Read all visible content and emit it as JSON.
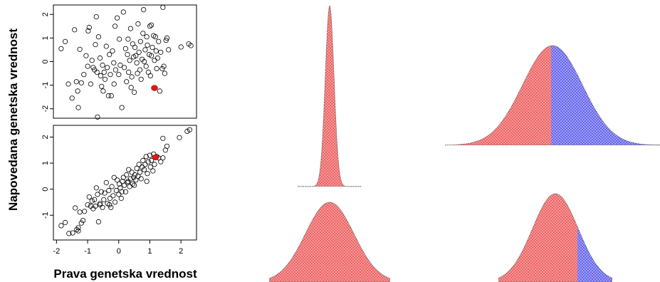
{
  "chart_data": [
    {
      "type": "scatter",
      "panel": "top-left",
      "ylabel": "Napovedana genetska vrednost",
      "xlim": [
        -2.1,
        2.5
      ],
      "ylim": [
        -2.4,
        2.4
      ],
      "yticks": [
        "-2",
        "-1",
        "0",
        "1",
        "2"
      ],
      "point_color": "#000000",
      "highlight_color": "#e01818",
      "highlight": {
        "x": 1.15,
        "y": -1.12
      },
      "points": [
        [
          -1.85,
          0.55
        ],
        [
          -1.72,
          0.85
        ],
        [
          -1.62,
          -0.95
        ],
        [
          -1.5,
          -1.55
        ],
        [
          -1.42,
          1.35
        ],
        [
          -1.36,
          -0.85
        ],
        [
          -1.32,
          -1.25
        ],
        [
          -1.3,
          -1.95
        ],
        [
          -1.25,
          0.52
        ],
        [
          -1.2,
          -0.9
        ],
        [
          -1.12,
          -0.55
        ],
        [
          -1.05,
          0.25
        ],
        [
          -0.98,
          1.3
        ],
        [
          -0.95,
          1.45
        ],
        [
          -0.9,
          -0.95
        ],
        [
          -0.86,
          0.05
        ],
        [
          -0.82,
          -0.25
        ],
        [
          -0.78,
          -0.35
        ],
        [
          -0.75,
          0.72
        ],
        [
          -0.72,
          1.9
        ],
        [
          -0.7,
          -0.45
        ],
        [
          -0.68,
          -2.35
        ],
        [
          -0.65,
          1.05
        ],
        [
          -0.6,
          0.15
        ],
        [
          -0.58,
          -0.6
        ],
        [
          -0.55,
          -1.05
        ],
        [
          -0.52,
          -0.15
        ],
        [
          -0.5,
          -1.25
        ],
        [
          -0.47,
          -0.45
        ],
        [
          -0.44,
          -0.75
        ],
        [
          -0.4,
          0.65
        ],
        [
          -0.37,
          -0.25
        ],
        [
          -0.33,
          -1.45
        ],
        [
          -0.3,
          0.3
        ],
        [
          -0.27,
          -0.55
        ],
        [
          -0.24,
          -1.45
        ],
        [
          -0.2,
          0.45
        ],
        [
          -0.16,
          -0.05
        ],
        [
          -0.12,
          1.5
        ],
        [
          -0.1,
          -0.35
        ],
        [
          -0.05,
          1.85
        ],
        [
          0.0,
          -0.55
        ],
        [
          0.02,
          0.95
        ],
        [
          0.05,
          -0.15
        ],
        [
          0.1,
          -1.95
        ],
        [
          0.15,
          2.1
        ],
        [
          0.18,
          -0.25
        ],
        [
          0.22,
          0.55
        ],
        [
          0.25,
          -0.85
        ],
        [
          0.28,
          0.3
        ],
        [
          0.32,
          -0.45
        ],
        [
          0.35,
          0.05
        ],
        [
          0.38,
          1.4
        ],
        [
          0.4,
          -1.1
        ],
        [
          0.42,
          -0.65
        ],
        [
          0.45,
          0.75
        ],
        [
          0.48,
          0.2
        ],
        [
          0.5,
          -1.3
        ],
        [
          0.52,
          0.6
        ],
        [
          0.55,
          0.25
        ],
        [
          0.58,
          -0.05
        ],
        [
          0.62,
          1.6
        ],
        [
          0.65,
          0.4
        ],
        [
          0.68,
          -0.35
        ],
        [
          0.7,
          0.85
        ],
        [
          0.72,
          -0.75
        ],
        [
          0.75,
          0.1
        ],
        [
          0.78,
          1.2
        ],
        [
          0.8,
          2.2
        ],
        [
          0.82,
          0.0
        ],
        [
          0.85,
          0.5
        ],
        [
          0.88,
          -0.2
        ],
        [
          0.9,
          1.05
        ],
        [
          0.92,
          0.7
        ],
        [
          0.95,
          -0.45
        ],
        [
          0.98,
          0.3
        ],
        [
          1.0,
          1.5
        ],
        [
          1.02,
          -0.6
        ],
        [
          1.05,
          0.25
        ],
        [
          1.08,
          0.6
        ],
        [
          1.12,
          1.1
        ],
        [
          1.15,
          0.05
        ],
        [
          1.18,
          1.05
        ],
        [
          1.2,
          0.45
        ],
        [
          1.22,
          -0.3
        ],
        [
          1.25,
          0.15
        ],
        [
          1.28,
          0.85
        ],
        [
          1.32,
          -1.25
        ],
        [
          1.35,
          0.4
        ],
        [
          1.42,
          2.3
        ],
        [
          1.45,
          -0.2
        ],
        [
          1.48,
          -0.5
        ],
        [
          1.52,
          0.9
        ],
        [
          1.55,
          1.0
        ],
        [
          1.6,
          0.5
        ],
        [
          1.05,
          1.55
        ],
        [
          0.6,
          -0.5
        ],
        [
          -0.15,
          -0.95
        ],
        [
          0.3,
          0.95
        ],
        [
          -1.0,
          -0.2
        ],
        [
          2.0,
          0.62
        ],
        [
          2.25,
          0.75
        ],
        [
          2.32,
          0.68
        ],
        [
          1.4,
          -0.3
        ]
      ]
    },
    {
      "type": "scatter",
      "panel": "bottom-left",
      "xlabel": "Prava genetska vrednost",
      "xlim": [
        -2.1,
        2.5
      ],
      "ylim": [
        -1.95,
        2.45
      ],
      "xticks": [
        "-2",
        "-1",
        "0",
        "1",
        "2"
      ],
      "yticks": [
        "-1",
        "0",
        "1",
        "2"
      ],
      "point_color": "#000000",
      "highlight_color": "#e01818",
      "highlight": {
        "x": 1.18,
        "y": 1.22
      },
      "points": [
        [
          -1.85,
          -1.4
        ],
        [
          -1.72,
          -1.28
        ],
        [
          -1.6,
          -1.7
        ],
        [
          -1.48,
          -1.68
        ],
        [
          -1.4,
          -0.72
        ],
        [
          -1.35,
          -1.55
        ],
        [
          -1.3,
          -1.48
        ],
        [
          -1.25,
          -0.88
        ],
        [
          -1.2,
          -1.3
        ],
        [
          -1.15,
          -1.2
        ],
        [
          -1.1,
          -0.85
        ],
        [
          -1.0,
          -0.6
        ],
        [
          -0.95,
          -0.3
        ],
        [
          -0.9,
          -0.65
        ],
        [
          -0.86,
          -0.45
        ],
        [
          -0.82,
          -0.75
        ],
        [
          -0.78,
          -0.4
        ],
        [
          -0.75,
          -0.65
        ],
        [
          -0.72,
          0.05
        ],
        [
          -0.68,
          -0.2
        ],
        [
          -0.65,
          -1.25
        ],
        [
          -0.6,
          -0.55
        ],
        [
          -0.56,
          -0.1
        ],
        [
          -0.52,
          -0.7
        ],
        [
          -0.48,
          -0.4
        ],
        [
          -0.45,
          -0.15
        ],
        [
          -0.4,
          0.25
        ],
        [
          -0.36,
          -0.55
        ],
        [
          -0.32,
          -0.05
        ],
        [
          -0.28,
          -0.35
        ],
        [
          -0.25,
          -0.7
        ],
        [
          -0.22,
          0.1
        ],
        [
          -0.18,
          -0.25
        ],
        [
          -0.15,
          0.45
        ],
        [
          -0.12,
          -0.5
        ],
        [
          -0.08,
          -0.05
        ],
        [
          -0.05,
          0.35
        ],
        [
          0.0,
          -0.2
        ],
        [
          0.02,
          0.2
        ],
        [
          0.05,
          0.05
        ],
        [
          0.08,
          -0.35
        ],
        [
          0.12,
          0.3
        ],
        [
          0.15,
          0.45
        ],
        [
          0.18,
          0.15
        ],
        [
          0.22,
          -0.1
        ],
        [
          0.25,
          0.55
        ],
        [
          0.28,
          0.25
        ],
        [
          0.32,
          0.75
        ],
        [
          0.35,
          0.1
        ],
        [
          0.38,
          0.4
        ],
        [
          0.42,
          0.65
        ],
        [
          0.45,
          0.2
        ],
        [
          0.48,
          0.45
        ],
        [
          0.52,
          0.55
        ],
        [
          0.55,
          0.35
        ],
        [
          0.58,
          0.8
        ],
        [
          0.62,
          0.5
        ],
        [
          0.65,
          0.95
        ],
        [
          0.68,
          0.65
        ],
        [
          0.72,
          0.4
        ],
        [
          0.75,
          0.85
        ],
        [
          0.78,
          1.1
        ],
        [
          0.82,
          0.75
        ],
        [
          0.85,
          0.95
        ],
        [
          0.88,
          1.25
        ],
        [
          0.92,
          0.6
        ],
        [
          0.95,
          1.05
        ],
        [
          1.0,
          1.3
        ],
        [
          1.02,
          0.85
        ],
        [
          1.05,
          1.1
        ],
        [
          1.1,
          0.7
        ],
        [
          1.12,
          1.35
        ],
        [
          1.15,
          0.95
        ],
        [
          1.22,
          1.25
        ],
        [
          1.28,
          1.2
        ],
        [
          1.35,
          1.05
        ],
        [
          1.42,
          1.2
        ],
        [
          1.5,
          1.5
        ],
        [
          1.55,
          1.65
        ],
        [
          1.42,
          1.95
        ],
        [
          2.2,
          2.22
        ],
        [
          2.28,
          2.28
        ],
        [
          1.95,
          1.98
        ],
        [
          -0.6,
          -0.6
        ],
        [
          0.3,
          0.3
        ],
        [
          -1.3,
          -1.6
        ],
        [
          0.9,
          0.3
        ],
        [
          0.5,
          0.15
        ],
        [
          -0.3,
          -0.6
        ],
        [
          0.1,
          -0.1
        ]
      ]
    },
    {
      "type": "area",
      "panel": "distribution-top-left",
      "fill_colors": [
        "#f07070"
      ],
      "split": null
    },
    {
      "type": "area",
      "panel": "distribution-top-right",
      "fill_colors": [
        "#f07070",
        "#7070f0"
      ],
      "split": 0.0
    },
    {
      "type": "area",
      "panel": "distribution-bottom-left",
      "fill_colors": [
        "#f07070"
      ],
      "split": null
    },
    {
      "type": "area",
      "panel": "distribution-bottom-right",
      "fill_colors": [
        "#f07070",
        "#7070f0"
      ],
      "split": 1.0
    }
  ]
}
